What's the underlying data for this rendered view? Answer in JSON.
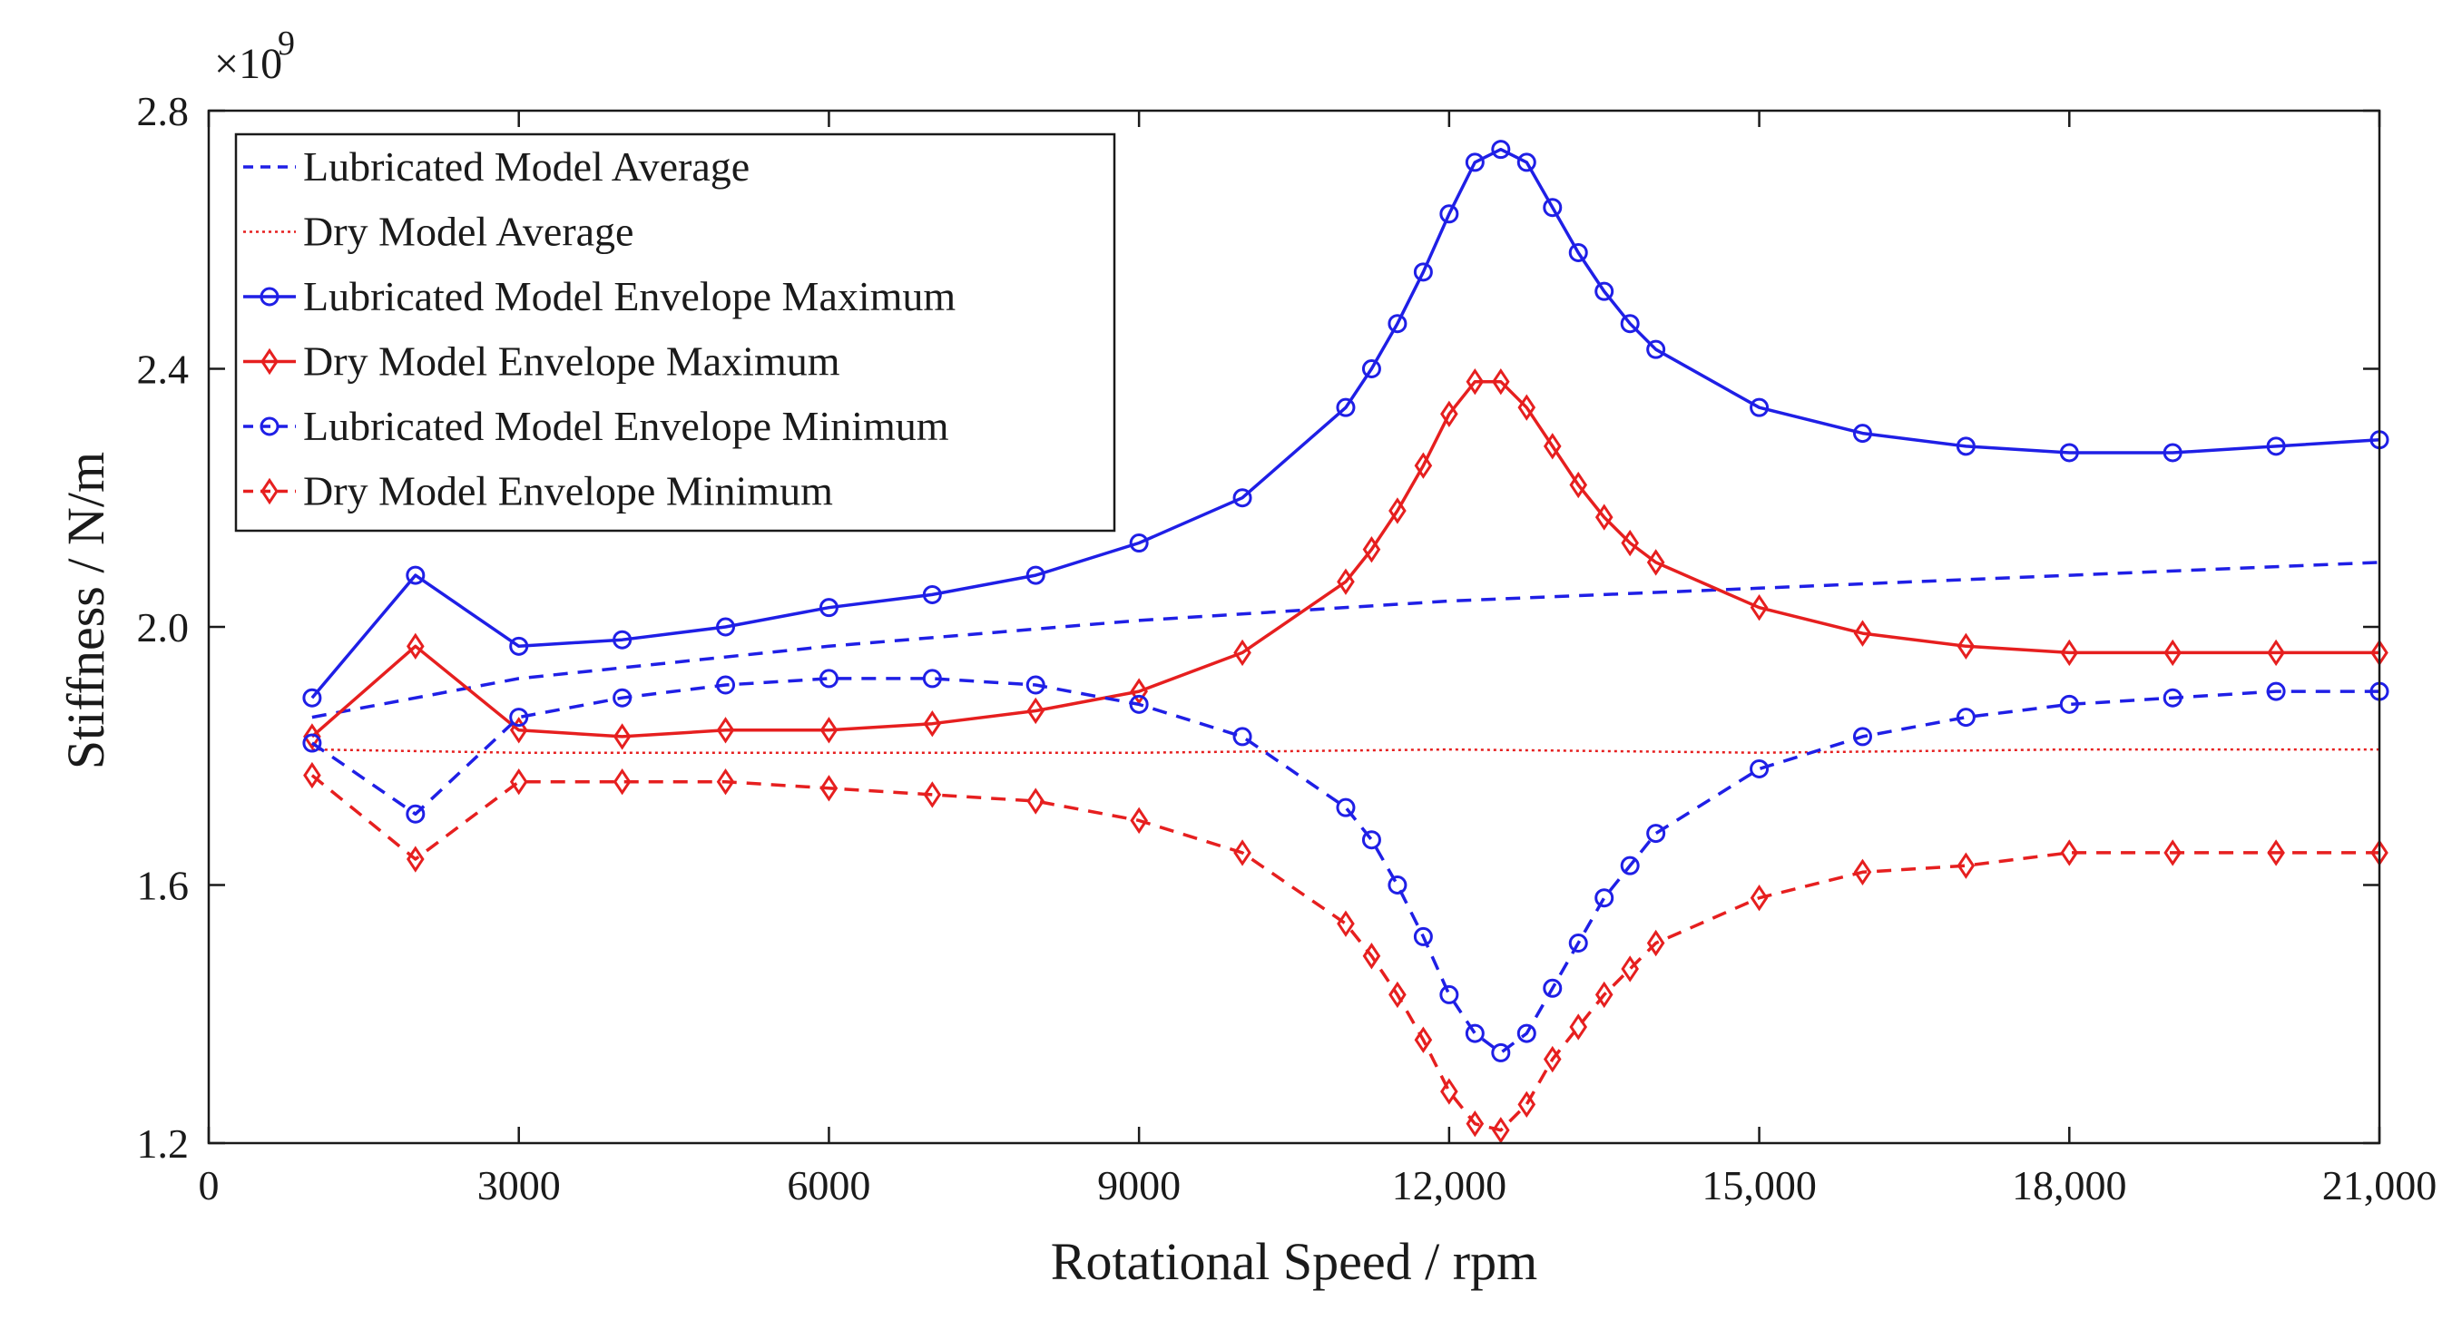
{
  "chart_data": {
    "type": "line",
    "xlabel": "Rotational Speed / rpm",
    "ylabel": "Stiffness / N/m",
    "y_multiplier": "×10",
    "y_multiplier_exponent": "9",
    "xlim": [
      0,
      21000
    ],
    "ylim": [
      1.2,
      2.8
    ],
    "x_ticks": [
      0,
      3000,
      6000,
      9000,
      12000,
      15000,
      18000,
      21000
    ],
    "x_tick_labels": [
      "0",
      "3000",
      "6000",
      "9000",
      "12,000",
      "15,000",
      "18,000",
      "21,000"
    ],
    "y_ticks": [
      1.2,
      1.6,
      2.0,
      2.4,
      2.8
    ],
    "y_tick_labels": [
      "1.2",
      "1.6",
      "2.0",
      "2.4",
      "2.8"
    ],
    "grid": false,
    "legend_position": "top-left",
    "series": [
      {
        "name": "Lubricated Model Average",
        "color": "#1f1fe6",
        "line": "dashed",
        "marker": "none",
        "x": [
          1000,
          3000,
          6000,
          9000,
          12000,
          15000,
          18000,
          21000
        ],
        "y": [
          1.86,
          1.92,
          1.97,
          2.01,
          2.04,
          2.06,
          2.08,
          2.1
        ]
      },
      {
        "name": "Dry Model Average",
        "color": "#e61f1f",
        "line": "dotted",
        "marker": "none",
        "x": [
          1000,
          3000,
          6000,
          9000,
          12000,
          15000,
          18000,
          21000
        ],
        "y": [
          1.81,
          1.805,
          1.805,
          1.805,
          1.81,
          1.805,
          1.81,
          1.81
        ]
      },
      {
        "name": "Lubricated Model Envelope Maximum",
        "color": "#1f1fe6",
        "line": "solid",
        "marker": "circle",
        "x": [
          1000,
          2000,
          3000,
          4000,
          5000,
          6000,
          7000,
          8000,
          9000,
          10000,
          11000,
          11250,
          11500,
          11750,
          12000,
          12250,
          12500,
          12750,
          13000,
          13250,
          13500,
          13750,
          14000,
          15000,
          16000,
          17000,
          18000,
          19000,
          20000,
          21000
        ],
        "y": [
          1.89,
          2.08,
          1.97,
          1.98,
          2.0,
          2.03,
          2.05,
          2.08,
          2.13,
          2.2,
          2.34,
          2.4,
          2.47,
          2.55,
          2.64,
          2.72,
          2.74,
          2.72,
          2.65,
          2.58,
          2.52,
          2.47,
          2.43,
          2.34,
          2.3,
          2.28,
          2.27,
          2.27,
          2.28,
          2.29
        ]
      },
      {
        "name": "Dry Model Envelope Maximum",
        "color": "#e61f1f",
        "line": "solid",
        "marker": "diamond",
        "x": [
          1000,
          2000,
          3000,
          4000,
          5000,
          6000,
          7000,
          8000,
          9000,
          10000,
          11000,
          11250,
          11500,
          11750,
          12000,
          12250,
          12500,
          12750,
          13000,
          13250,
          13500,
          13750,
          14000,
          15000,
          16000,
          17000,
          18000,
          19000,
          20000,
          21000
        ],
        "y": [
          1.83,
          1.97,
          1.84,
          1.83,
          1.84,
          1.84,
          1.85,
          1.87,
          1.9,
          1.96,
          2.07,
          2.12,
          2.18,
          2.25,
          2.33,
          2.38,
          2.38,
          2.34,
          2.28,
          2.22,
          2.17,
          2.13,
          2.1,
          2.03,
          1.99,
          1.97,
          1.96,
          1.96,
          1.96,
          1.96
        ]
      },
      {
        "name": "Lubricated Model Envelope Minimum",
        "color": "#1f1fe6",
        "line": "dashed",
        "marker": "circle",
        "x": [
          1000,
          2000,
          3000,
          4000,
          5000,
          6000,
          7000,
          8000,
          9000,
          10000,
          11000,
          11250,
          11500,
          11750,
          12000,
          12250,
          12500,
          12750,
          13000,
          13250,
          13500,
          13750,
          14000,
          15000,
          16000,
          17000,
          18000,
          19000,
          20000,
          21000
        ],
        "y": [
          1.82,
          1.71,
          1.86,
          1.89,
          1.91,
          1.92,
          1.92,
          1.91,
          1.88,
          1.83,
          1.72,
          1.67,
          1.6,
          1.52,
          1.43,
          1.37,
          1.34,
          1.37,
          1.44,
          1.51,
          1.58,
          1.63,
          1.68,
          1.78,
          1.83,
          1.86,
          1.88,
          1.89,
          1.9,
          1.9
        ]
      },
      {
        "name": "Dry Model Envelope Minimum",
        "color": "#e61f1f",
        "line": "dashed",
        "marker": "diamond",
        "x": [
          1000,
          2000,
          3000,
          4000,
          5000,
          6000,
          7000,
          8000,
          9000,
          10000,
          11000,
          11250,
          11500,
          11750,
          12000,
          12250,
          12500,
          12750,
          13000,
          13250,
          13500,
          13750,
          14000,
          15000,
          16000,
          17000,
          18000,
          19000,
          20000,
          21000
        ],
        "y": [
          1.77,
          1.64,
          1.76,
          1.76,
          1.76,
          1.75,
          1.74,
          1.73,
          1.7,
          1.65,
          1.54,
          1.49,
          1.43,
          1.36,
          1.28,
          1.23,
          1.22,
          1.26,
          1.33,
          1.38,
          1.43,
          1.47,
          1.51,
          1.58,
          1.62,
          1.63,
          1.65,
          1.65,
          1.65,
          1.65
        ]
      }
    ]
  }
}
